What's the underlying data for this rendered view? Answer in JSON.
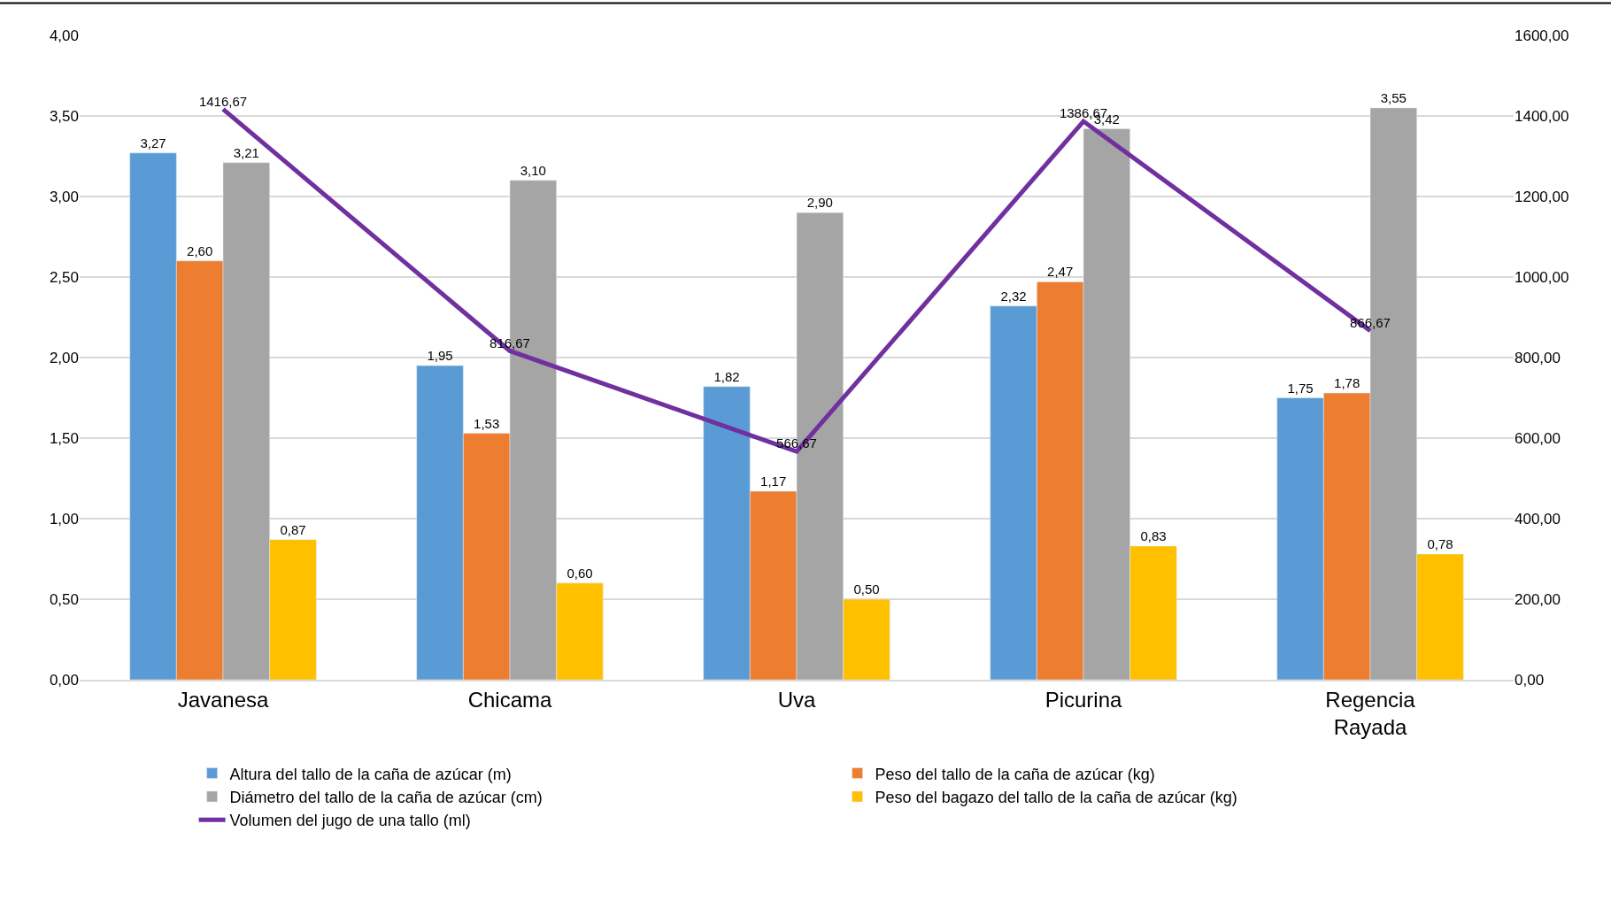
{
  "chart_data": {
    "type": "bar",
    "categories": [
      "Javanesa",
      "Chicama",
      "Uva",
      "Picurina",
      "Regencia Rayada"
    ],
    "series": [
      {
        "name": "Altura del tallo de la caña de azúcar (m)",
        "color": "#5b9bd5",
        "values": [
          3.27,
          1.95,
          1.82,
          2.32,
          1.75
        ],
        "value_labels": [
          "3,27",
          "1,95",
          "1,82",
          "2,32",
          "1,75"
        ]
      },
      {
        "name": "Peso del tallo de la caña de azúcar (kg)",
        "color": "#ed7d31",
        "values": [
          2.6,
          1.53,
          1.17,
          2.47,
          1.78
        ],
        "value_labels": [
          "2,60",
          "1,53",
          "1,17",
          "2,47",
          "1,78"
        ]
      },
      {
        "name": "Diámetro del tallo de la caña de azúcar (cm)",
        "color": "#a5a5a5",
        "values": [
          3.21,
          3.1,
          2.9,
          3.42,
          3.55
        ],
        "value_labels": [
          "3,21",
          "3,10",
          "2,90",
          "3,42",
          "3,55"
        ]
      },
      {
        "name": "Peso del bagazo del tallo de la caña de azúcar (kg)",
        "color": "#ffc000",
        "values": [
          0.87,
          0.6,
          0.5,
          0.83,
          0.78
        ],
        "value_labels": [
          "0,87",
          "0,60",
          "0,50",
          "0,83",
          "0,78"
        ]
      },
      {
        "name": "Volumen del jugo de una tallo (ml)",
        "type": "line",
        "axis": "y2",
        "color": "#7030a0",
        "values": [
          1416.67,
          816.67,
          566.67,
          1386.67,
          866.67
        ],
        "value_labels": [
          "1416,67",
          "816,67",
          "566,67",
          "1386,67",
          "866,67"
        ]
      }
    ],
    "ylim": [
      0,
      4
    ],
    "yticks": [
      {
        "value": 0,
        "label": "0,00"
      },
      {
        "value": 0.5,
        "label": "0,50"
      },
      {
        "value": 1,
        "label": "1,00"
      },
      {
        "value": 1.5,
        "label": "1,50"
      },
      {
        "value": 2,
        "label": "2,00"
      },
      {
        "value": 2.5,
        "label": "2,50"
      },
      {
        "value": 3,
        "label": "3,00"
      },
      {
        "value": 3.5,
        "label": "3,50"
      },
      {
        "value": 4,
        "label": "4,00"
      }
    ],
    "y2lim": [
      0,
      1600
    ],
    "y2ticks": [
      {
        "value": 0,
        "label": "0,00"
      },
      {
        "value": 200,
        "label": "200,00"
      },
      {
        "value": 400,
        "label": "400,00"
      },
      {
        "value": 600,
        "label": "600,00"
      },
      {
        "value": 800,
        "label": "800,00"
      },
      {
        "value": 1000,
        "label": "1000,00"
      },
      {
        "value": 1200,
        "label": "1200,00"
      },
      {
        "value": 1400,
        "label": "1400,00"
      },
      {
        "value": 1600,
        "label": "1600,00"
      }
    ],
    "grid": "y",
    "legend": "bottom",
    "marker": "none",
    "line_style": "solid"
  }
}
